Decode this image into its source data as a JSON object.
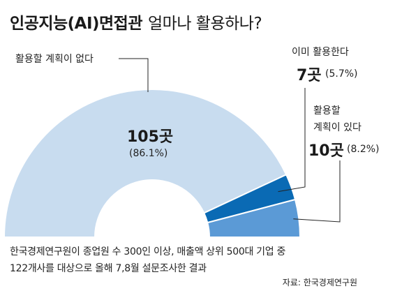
{
  "title": "인공지능(AI)면접관",
  "subtitle": "얼마나 활용하나?",
  "colors": {
    "no_plan": "#c8dcef",
    "already_use": "#0a6ab4",
    "plan_to_use": "#5b9ad6",
    "background": "#ffffff"
  },
  "chart_data": {
    "type": "pie",
    "variant": "half-donut",
    "slices": [
      {
        "label": "활용할 계획이 없다",
        "count_label": "105곳",
        "percent_label": "(86.1%)",
        "count": 105,
        "percent": 86.1,
        "color": "#c8dcef"
      },
      {
        "label": "이미 활용한다",
        "count_label": "7곳",
        "percent_label": "(5.7%)",
        "count": 7,
        "percent": 5.7,
        "color": "#0a6ab4"
      },
      {
        "label_lines": [
          "활용할",
          "계획이 있다"
        ],
        "count_label": "10곳",
        "percent_label": "(8.2%)",
        "count": 10,
        "percent": 8.2,
        "color": "#5b9ad6"
      }
    ]
  },
  "notes": [
    "한국경제연구원이 종업원 수 300인 이상, 매출액 상위 500대 기업 중",
    "122개사를 대상으로 올해 7,8월 설문조사한 결과"
  ],
  "source": "자료: 한국경제연구원"
}
